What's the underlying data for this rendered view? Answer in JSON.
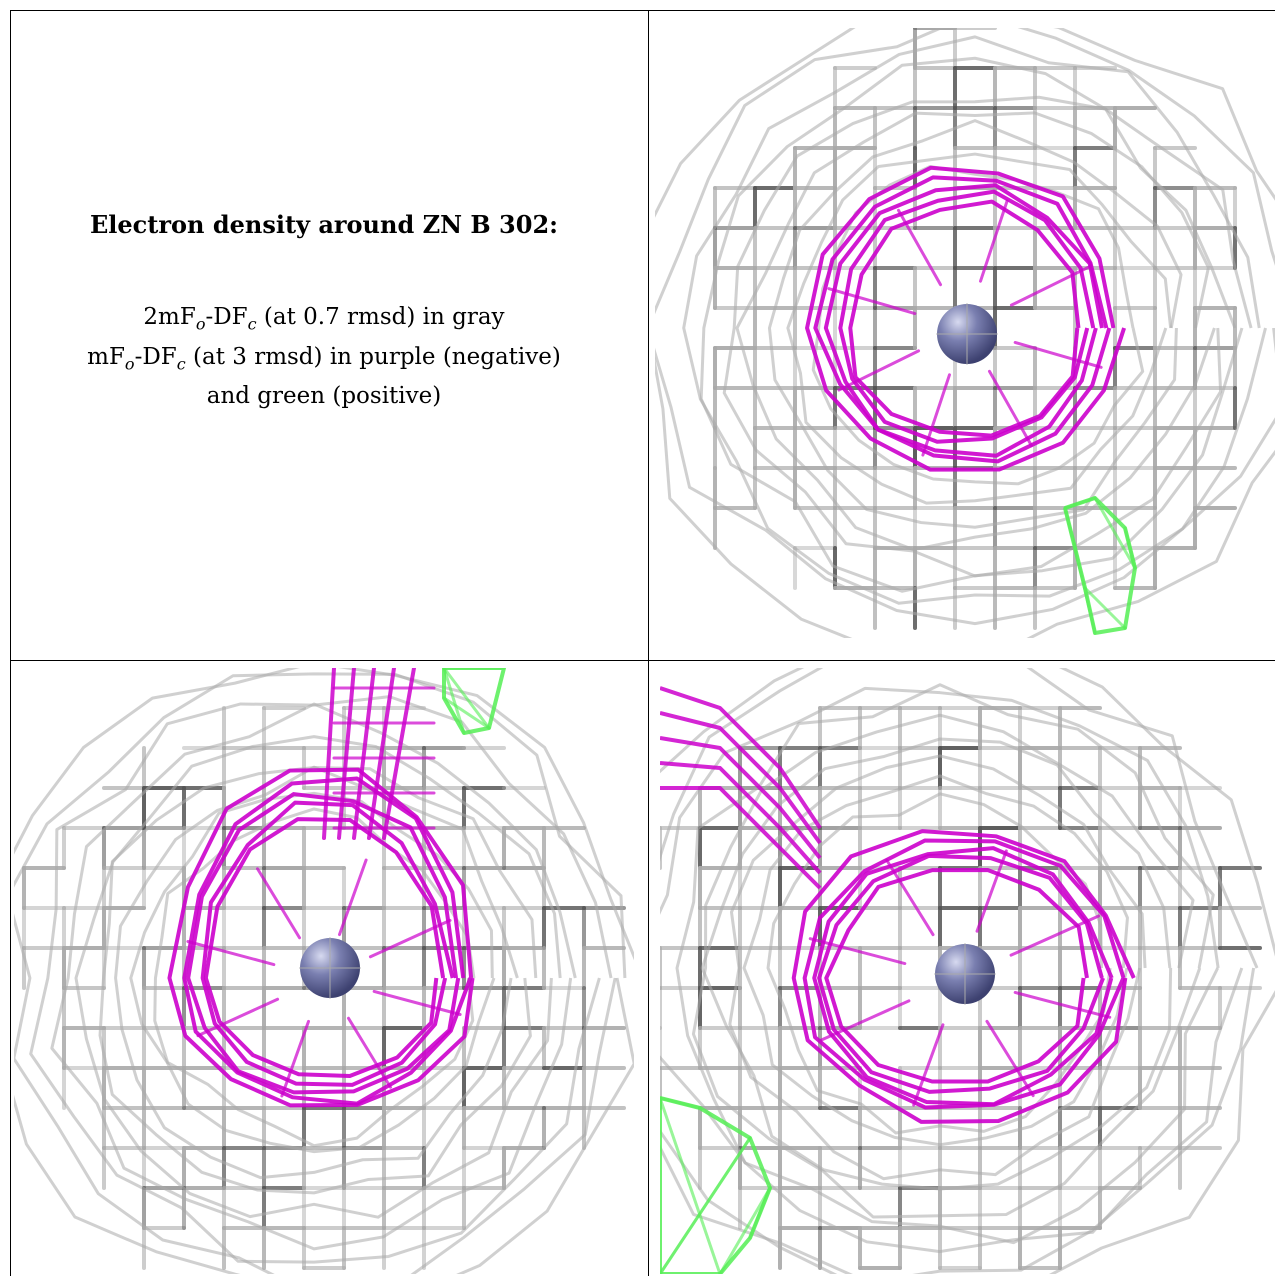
{
  "caption": {
    "title": "Electron density around ZN B 302:",
    "line1": {
      "a": "2mF",
      "sub1": "o",
      "b": "-DF",
      "sub2": "c",
      "c": " (at 0.7 rmsd) in gray"
    },
    "line2": {
      "a": "mF",
      "sub1": "o",
      "b": "-DF",
      "sub2": "c",
      "c": " (at 3 rmsd) in purple (negative)"
    },
    "line3": "and green (positive)"
  },
  "colors": {
    "gray_mesh": "#a9a9a9",
    "gray_dark": "#555555",
    "purple_mesh": "#cc00cc",
    "green_mesh": "#55ee55",
    "atom": "#7a7fb0"
  },
  "panels": [
    {
      "name": "view-top-right",
      "atom": "ZN B 302"
    },
    {
      "name": "view-bottom-left",
      "atom": "ZN B 302"
    },
    {
      "name": "view-bottom-right",
      "atom": "ZN B 302"
    }
  ]
}
